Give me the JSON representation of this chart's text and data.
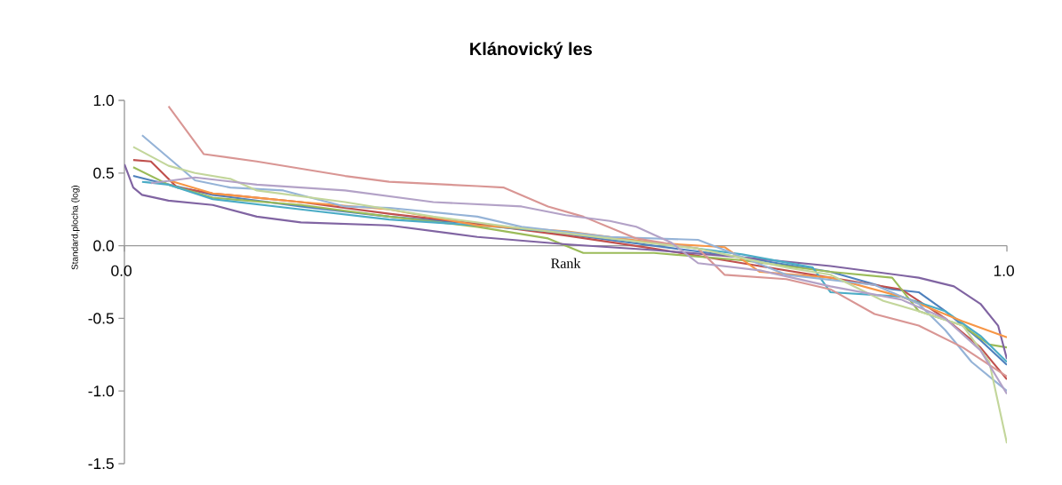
{
  "chart_data": {
    "type": "line",
    "title": "Klánovický les",
    "xlabel": "Rank",
    "ylabel": "Standard.plocha (log)",
    "xlim": [
      0,
      1
    ],
    "xticks": [
      {
        "value": 0,
        "label": "0.0"
      },
      {
        "value": 1,
        "label": "1.0"
      }
    ],
    "ylim": [
      -1.5,
      1.0
    ],
    "yticks": [
      {
        "value": -1.5,
        "label": "-1.5"
      },
      {
        "value": -1.0,
        "label": "-1.0"
      },
      {
        "value": -0.5,
        "label": "-0.5"
      },
      {
        "value": 0,
        "label": "0.0"
      },
      {
        "value": 0.5,
        "label": "0.5"
      },
      {
        "value": 1.0,
        "label": "1.0"
      }
    ],
    "grid": false,
    "legend": false,
    "marker": "none",
    "line_style": "solid",
    "series": [
      {
        "color": "#4f81bd",
        "x": [
          0.01,
          0.03,
          0.1,
          0.2,
          0.3,
          0.4,
          0.5,
          0.6,
          0.7,
          0.8,
          0.87,
          0.9,
          0.93,
          0.97,
          1.0
        ],
        "values": [
          0.48,
          0.45,
          0.35,
          0.27,
          0.2,
          0.15,
          0.08,
          0.0,
          -0.08,
          -0.18,
          -0.3,
          -0.32,
          -0.45,
          -0.65,
          -0.82
        ]
      },
      {
        "color": "#c0504d",
        "x": [
          0.01,
          0.03,
          0.06,
          0.1,
          0.2,
          0.3,
          0.4,
          0.5,
          0.6,
          0.7,
          0.8,
          0.88,
          0.93,
          0.97,
          1.0
        ],
        "values": [
          0.59,
          0.58,
          0.4,
          0.36,
          0.3,
          0.22,
          0.15,
          0.07,
          -0.02,
          -0.12,
          -0.22,
          -0.3,
          -0.5,
          -0.7,
          -0.92
        ]
      },
      {
        "color": "#9bbb59",
        "x": [
          0.01,
          0.05,
          0.1,
          0.2,
          0.3,
          0.4,
          0.48,
          0.52,
          0.6,
          0.7,
          0.8,
          0.87,
          0.9,
          0.95,
          0.98,
          1.0
        ],
        "values": [
          0.54,
          0.42,
          0.33,
          0.28,
          0.2,
          0.13,
          0.05,
          -0.05,
          -0.05,
          -0.1,
          -0.18,
          -0.22,
          -0.45,
          -0.55,
          -0.68,
          -0.7
        ]
      },
      {
        "color": "#8064a2",
        "x": [
          0.0,
          0.01,
          0.02,
          0.05,
          0.1,
          0.15,
          0.2,
          0.3,
          0.35,
          0.4,
          0.5,
          0.6,
          0.7,
          0.8,
          0.9,
          0.94,
          0.97,
          0.99,
          1.0
        ],
        "values": [
          0.56,
          0.4,
          0.35,
          0.31,
          0.28,
          0.2,
          0.16,
          0.14,
          0.1,
          0.06,
          0.01,
          -0.03,
          -0.08,
          -0.14,
          -0.22,
          -0.28,
          -0.4,
          -0.55,
          -0.78
        ]
      },
      {
        "color": "#4bacc6",
        "x": [
          0.02,
          0.05,
          0.1,
          0.2,
          0.3,
          0.4,
          0.5,
          0.6,
          0.7,
          0.78,
          0.8,
          0.88,
          0.93,
          0.97,
          1.0
        ],
        "values": [
          0.44,
          0.42,
          0.32,
          0.25,
          0.18,
          0.14,
          0.09,
          0.02,
          -0.06,
          -0.15,
          -0.32,
          -0.35,
          -0.45,
          -0.62,
          -0.8
        ]
      },
      {
        "color": "#f79646",
        "x": [
          0.05,
          0.1,
          0.2,
          0.3,
          0.4,
          0.5,
          0.6,
          0.68,
          0.72,
          0.8,
          0.88,
          0.95,
          1.0
        ],
        "values": [
          0.45,
          0.36,
          0.3,
          0.25,
          0.14,
          0.1,
          0.02,
          -0.01,
          -0.18,
          -0.22,
          -0.35,
          -0.52,
          -0.63
        ]
      },
      {
        "color": "#95b3d7",
        "x": [
          0.02,
          0.08,
          0.12,
          0.18,
          0.25,
          0.3,
          0.4,
          0.45,
          0.55,
          0.65,
          0.68,
          0.75,
          0.85,
          0.9,
          0.93,
          0.96,
          1.0
        ],
        "values": [
          0.76,
          0.45,
          0.4,
          0.38,
          0.27,
          0.26,
          0.2,
          0.13,
          0.06,
          0.04,
          -0.03,
          -0.2,
          -0.27,
          -0.4,
          -0.58,
          -0.8,
          -1.0
        ]
      },
      {
        "color": "#d99694",
        "x": [
          0.05,
          0.09,
          0.15,
          0.25,
          0.3,
          0.4,
          0.43,
          0.48,
          0.52,
          0.58,
          0.65,
          0.68,
          0.75,
          0.8,
          0.85,
          0.9,
          0.95,
          1.0
        ],
        "values": [
          0.96,
          0.63,
          0.58,
          0.48,
          0.44,
          0.41,
          0.4,
          0.27,
          0.2,
          0.05,
          -0.02,
          -0.2,
          -0.23,
          -0.3,
          -0.47,
          -0.55,
          -0.7,
          -0.9
        ]
      },
      {
        "color": "#c3d69b",
        "x": [
          0.01,
          0.05,
          0.08,
          0.12,
          0.15,
          0.25,
          0.35,
          0.45,
          0.55,
          0.65,
          0.75,
          0.8,
          0.86,
          0.9,
          0.95,
          0.98,
          1.0
        ],
        "values": [
          0.68,
          0.55,
          0.5,
          0.46,
          0.38,
          0.3,
          0.2,
          0.12,
          0.05,
          -0.02,
          -0.15,
          -0.2,
          -0.38,
          -0.45,
          -0.55,
          -0.8,
          -1.36
        ]
      },
      {
        "color": "#b3a2c7",
        "x": [
          0.03,
          0.08,
          0.15,
          0.25,
          0.35,
          0.45,
          0.5,
          0.55,
          0.58,
          0.62,
          0.65,
          0.72,
          0.8,
          0.88,
          0.93,
          0.97,
          1.0
        ],
        "values": [
          0.43,
          0.47,
          0.42,
          0.38,
          0.3,
          0.27,
          0.21,
          0.17,
          0.13,
          0.02,
          -0.12,
          -0.17,
          -0.28,
          -0.37,
          -0.5,
          -0.72,
          -1.02
        ]
      }
    ]
  }
}
